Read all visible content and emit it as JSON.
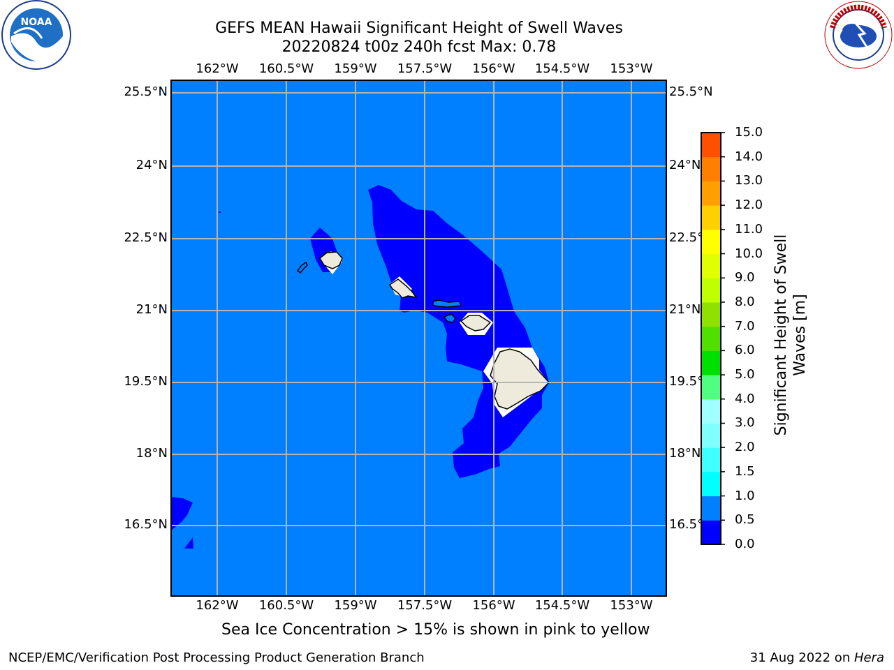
{
  "title": {
    "line1": "GEFS MEAN Hawaii Significant Height of Swell Waves",
    "line2": "20220824 t00z 240h fcst   Max: 0.78"
  },
  "axes": {
    "lon_labels": [
      "162°W",
      "160.5°W",
      "159°W",
      "157.5°W",
      "156°W",
      "154.5°W",
      "153°W"
    ],
    "lat_labels_left": [
      "25.5°N",
      "24°N",
      "22.5°N",
      "21°N",
      "19.5°N",
      "18°N",
      "16.5°N"
    ],
    "lat_labels_right": [
      "25.5°N",
      "24°N",
      "22.5°N",
      "21°N",
      "19.5°N",
      "18°N",
      "16.5°N"
    ]
  },
  "colorbar": {
    "label": "Significant Height of Swell Waves [m]",
    "levels": [
      "0.0",
      "0.5",
      "1.0",
      "1.5",
      "2.0",
      "3.0",
      "4.0",
      "5.0",
      "6.0",
      "7.0",
      "8.0",
      "9.0",
      "10.0",
      "11.0",
      "12.0",
      "13.0",
      "14.0",
      "15.0"
    ],
    "colors": [
      "#0000ff",
      "#0080ff",
      "#00ffff",
      "#40ffff",
      "#80ffff",
      "#a0ffff",
      "#50ff80",
      "#00e000",
      "#50e000",
      "#90e000",
      "#c0ff00",
      "#e0ff00",
      "#ffff00",
      "#ffd000",
      "#ffa000",
      "#ff8000",
      "#ff5000",
      "#ff2000",
      "#ff0000"
    ]
  },
  "map": {
    "ocean_color": "#0080ff",
    "swell_low_color": "#0000ff",
    "land_color": "#eeebdc"
  },
  "note": "Sea Ice Concentration > 15% is shown in pink to yellow",
  "footer": {
    "left": "NCEP/EMC/Verification Post Processing Product Generation Branch",
    "right_prefix": "31 Aug 2022 on ",
    "right_host": "Hera"
  },
  "logos": {
    "noaa": "NOAA",
    "nws": "NATIONAL WEATHER SERVICE"
  }
}
